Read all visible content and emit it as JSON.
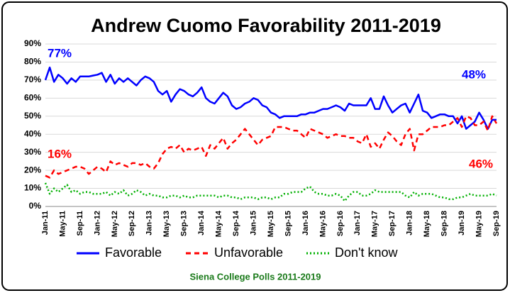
{
  "chart_data": {
    "type": "line",
    "title": "Andrew Cuomo Favorability 2011-2019",
    "footer": "Siena College Polls 2011-2019",
    "categories": [
      "Jan-11",
      null,
      null,
      null,
      "May-11",
      null,
      null,
      null,
      "Sep-11",
      null,
      null,
      null,
      "Jan-12",
      null,
      null,
      null,
      "May-12",
      null,
      null,
      null,
      "Sep-12",
      null,
      null,
      null,
      "Jan-13",
      null,
      null,
      null,
      "May-13",
      null,
      null,
      null,
      "Sep-13",
      null,
      null,
      null,
      "Jan-14",
      null,
      null,
      null,
      "May-14",
      null,
      null,
      null,
      "Sep-14",
      null,
      null,
      null,
      "Jan-15",
      null,
      null,
      null,
      "May-15",
      null,
      null,
      null,
      "Sep-15",
      null,
      null,
      null,
      "Jan-16",
      null,
      null,
      null,
      "May-16",
      null,
      null,
      null,
      "Sep-16",
      null,
      null,
      null,
      "Jan-17",
      null,
      null,
      null,
      "May-17",
      null,
      null,
      null,
      "Sep-17",
      null,
      null,
      null,
      "Jan-18",
      null,
      null,
      null,
      "May-18",
      null,
      null,
      null,
      "Sep-18",
      null,
      null,
      null,
      "Jan-19",
      null,
      null,
      null,
      "May-19",
      null,
      null,
      null,
      "Sep-19"
    ],
    "series": [
      {
        "name": "Favorable",
        "color": "#0000ff",
        "dash": "none",
        "values": [
          70,
          77,
          69,
          73,
          71,
          68,
          71,
          69,
          72,
          72,
          72,
          72.5,
          73,
          74,
          69,
          73,
          68,
          71,
          69,
          71,
          69,
          67,
          70,
          72,
          71,
          69,
          64,
          62,
          64,
          58,
          62,
          65,
          64,
          62,
          61,
          63,
          66,
          60,
          58,
          57,
          60,
          63,
          61,
          56,
          54,
          55,
          57,
          58,
          60,
          59,
          56,
          55,
          52,
          51,
          49,
          50,
          50,
          50,
          50,
          51,
          51,
          52,
          52,
          53,
          54,
          54,
          55,
          56,
          55,
          53,
          57,
          56,
          56,
          56,
          56,
          60,
          54,
          54,
          61,
          56,
          52,
          54,
          56,
          57,
          52,
          57,
          62,
          53,
          52,
          49,
          50,
          51,
          51,
          50,
          50,
          46,
          50,
          43,
          45,
          47,
          52,
          48,
          43,
          48,
          48
        ]
      },
      {
        "name": "Unfavorable",
        "color": "#ff0000",
        "dash": "7 5",
        "values": [
          17,
          16,
          20,
          18,
          19,
          20,
          21,
          22,
          22,
          21,
          18,
          20,
          22,
          21,
          19,
          25,
          23,
          24,
          23,
          22,
          24,
          24,
          23,
          24,
          22,
          21,
          24,
          29,
          32,
          33,
          32,
          34,
          30,
          32,
          31,
          32,
          33,
          28,
          34,
          32,
          35,
          38,
          32,
          35,
          37,
          40,
          43,
          40,
          37,
          34,
          37,
          38,
          39,
          44,
          44,
          44,
          43,
          42,
          42,
          40,
          38,
          43,
          42,
          41,
          40,
          38,
          39,
          40,
          39,
          39,
          38,
          38,
          36,
          35,
          40,
          33,
          35,
          32,
          37,
          41,
          39,
          36,
          34,
          40,
          43,
          31,
          40,
          40,
          42,
          44,
          44,
          44,
          45,
          45,
          47,
          49,
          44,
          50,
          49,
          45,
          45,
          47,
          42,
          50,
          46
        ]
      },
      {
        "name": "Don't know",
        "color": "#00b000",
        "dash": "2 3",
        "values": [
          13,
          7,
          10,
          8,
          10,
          12,
          8,
          9,
          7,
          8,
          8,
          7,
          7,
          7,
          8,
          6,
          8,
          7,
          9,
          6,
          7,
          9,
          8,
          6,
          7,
          6,
          6,
          5,
          5,
          6,
          6,
          5,
          6,
          5,
          5,
          6,
          6,
          6,
          6,
          6,
          5,
          6,
          6,
          5,
          5,
          4,
          5,
          5,
          5,
          4,
          5,
          5,
          4,
          5,
          5,
          7,
          7,
          8,
          8,
          8,
          10,
          11,
          8,
          7,
          7,
          6,
          6,
          7,
          6,
          3,
          6,
          8,
          8,
          6,
          6,
          7,
          9,
          8,
          8,
          8,
          8,
          8,
          8,
          6,
          5,
          8,
          6,
          7,
          7,
          7,
          6,
          5,
          5,
          4,
          4,
          5,
          5,
          6,
          7,
          6,
          6,
          6,
          6,
          7,
          6
        ]
      }
    ],
    "annotations": [
      {
        "text": "77%",
        "series": "Favorable"
      },
      {
        "text": "16%",
        "series": "Unfavorable"
      },
      {
        "text": "48%",
        "series": "Favorable"
      },
      {
        "text": "46%",
        "series": "Unfavorable"
      }
    ],
    "ylim": [
      0,
      90
    ],
    "yticks": [
      {
        "value": 0,
        "label": "0%"
      },
      {
        "value": 10,
        "label": "10%"
      },
      {
        "value": 20,
        "label": "20%"
      },
      {
        "value": 30,
        "label": "30%"
      },
      {
        "value": 40,
        "label": "40%"
      },
      {
        "value": 50,
        "label": "50%"
      },
      {
        "value": 60,
        "label": "60%"
      },
      {
        "value": 70,
        "label": "70%"
      },
      {
        "value": 80,
        "label": "80%"
      },
      {
        "value": 90,
        "label": "90%"
      }
    ],
    "grid": true,
    "legend": "bottom"
  }
}
